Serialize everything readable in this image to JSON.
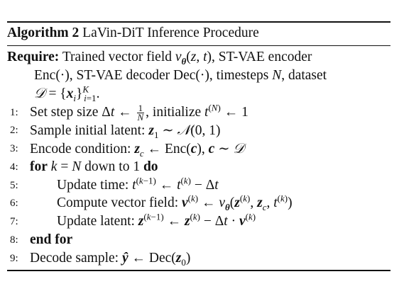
{
  "algorithm": {
    "label": "Algorithm 2",
    "title": "LaVin-DiT Inference Procedure",
    "require_keyword": "Require:",
    "require_text_1": "Trained vector field",
    "require_text_2": "ST-VAE encoder",
    "require_text_3": "Enc(·), ST-VAE decoder Dec(·), timesteps N, dataset",
    "require_text_4": "D = {x_i}_{i=1}^K.",
    "lines": [
      {
        "num": "1:",
        "text": "Set step size Δt ← 1/N, initialize t^(N) ← 1"
      },
      {
        "num": "2:",
        "text": "Sample initial latent: z_1 ∼ N(0, 1)"
      },
      {
        "num": "3:",
        "text": "Encode condition: z_c ← Enc(c), c ∼ D"
      },
      {
        "num": "4:",
        "text": "for k = N down to 1 do"
      },
      {
        "num": "5:",
        "text": "Update time: t^(k−1) ← t^(k) − Δt"
      },
      {
        "num": "6:",
        "text": "Compute vector field: v^(k) ← v_θ(z^(k), z_c, t^(k))"
      },
      {
        "num": "7:",
        "text": "Update latent: z^(k−1) ← z^(k) − Δt · v^(k)"
      },
      {
        "num": "8:",
        "text": "end for"
      },
      {
        "num": "9:",
        "text": "Decode sample: ŷ ← Dec(z_0)"
      }
    ],
    "labels": {
      "l1a": "Set step size",
      "l1b": ", initialize",
      "l2": "Sample initial latent:",
      "l3": "Encode condition:",
      "l4_for": "for",
      "l4_down": "down to 1",
      "l4_do": "do",
      "l5": "Update time:",
      "l6": "Compute vector field:",
      "l7": "Update latent:",
      "l8": "end for",
      "l9": "Decode sample:"
    }
  }
}
